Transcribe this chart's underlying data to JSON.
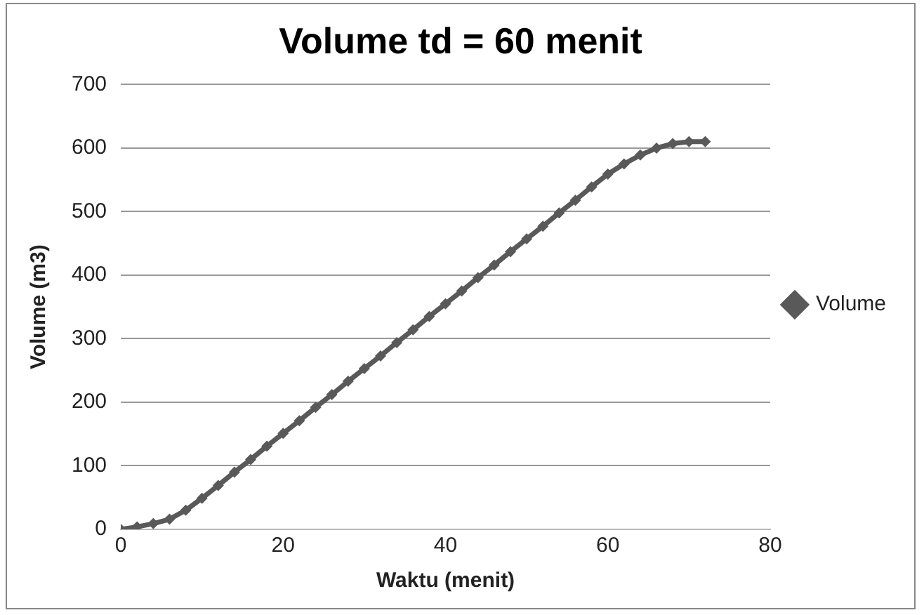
{
  "chart_data": {
    "type": "line",
    "title": "Volume td = 60 menit",
    "xlabel": "Waktu (menit)",
    "ylabel": "Volume (m3)",
    "x": [
      0,
      2,
      4,
      6,
      8,
      10,
      12,
      14,
      16,
      18,
      20,
      22,
      24,
      26,
      28,
      30,
      32,
      34,
      36,
      38,
      40,
      42,
      44,
      46,
      48,
      50,
      52,
      54,
      56,
      58,
      60,
      62,
      64,
      66,
      68,
      70,
      72
    ],
    "series": [
      {
        "name": "Volume",
        "color": "#595959",
        "values": [
          0,
          4,
          9,
          16,
          30,
          49,
          69,
          90,
          110,
          131,
          151,
          171,
          192,
          212,
          233,
          253,
          273,
          294,
          314,
          335,
          355,
          375,
          396,
          416,
          437,
          457,
          477,
          498,
          518,
          539,
          559,
          575,
          589,
          600,
          607,
          610,
          610
        ]
      }
    ],
    "xlim": [
      0,
      80
    ],
    "xticks": [
      0,
      20,
      40,
      60,
      80
    ],
    "ylim": [
      0,
      700
    ],
    "yticks": [
      0,
      100,
      200,
      300,
      400,
      500,
      600,
      700
    ],
    "grid": "y",
    "legend": "right",
    "marker": "diamond",
    "line_style": "solid"
  }
}
